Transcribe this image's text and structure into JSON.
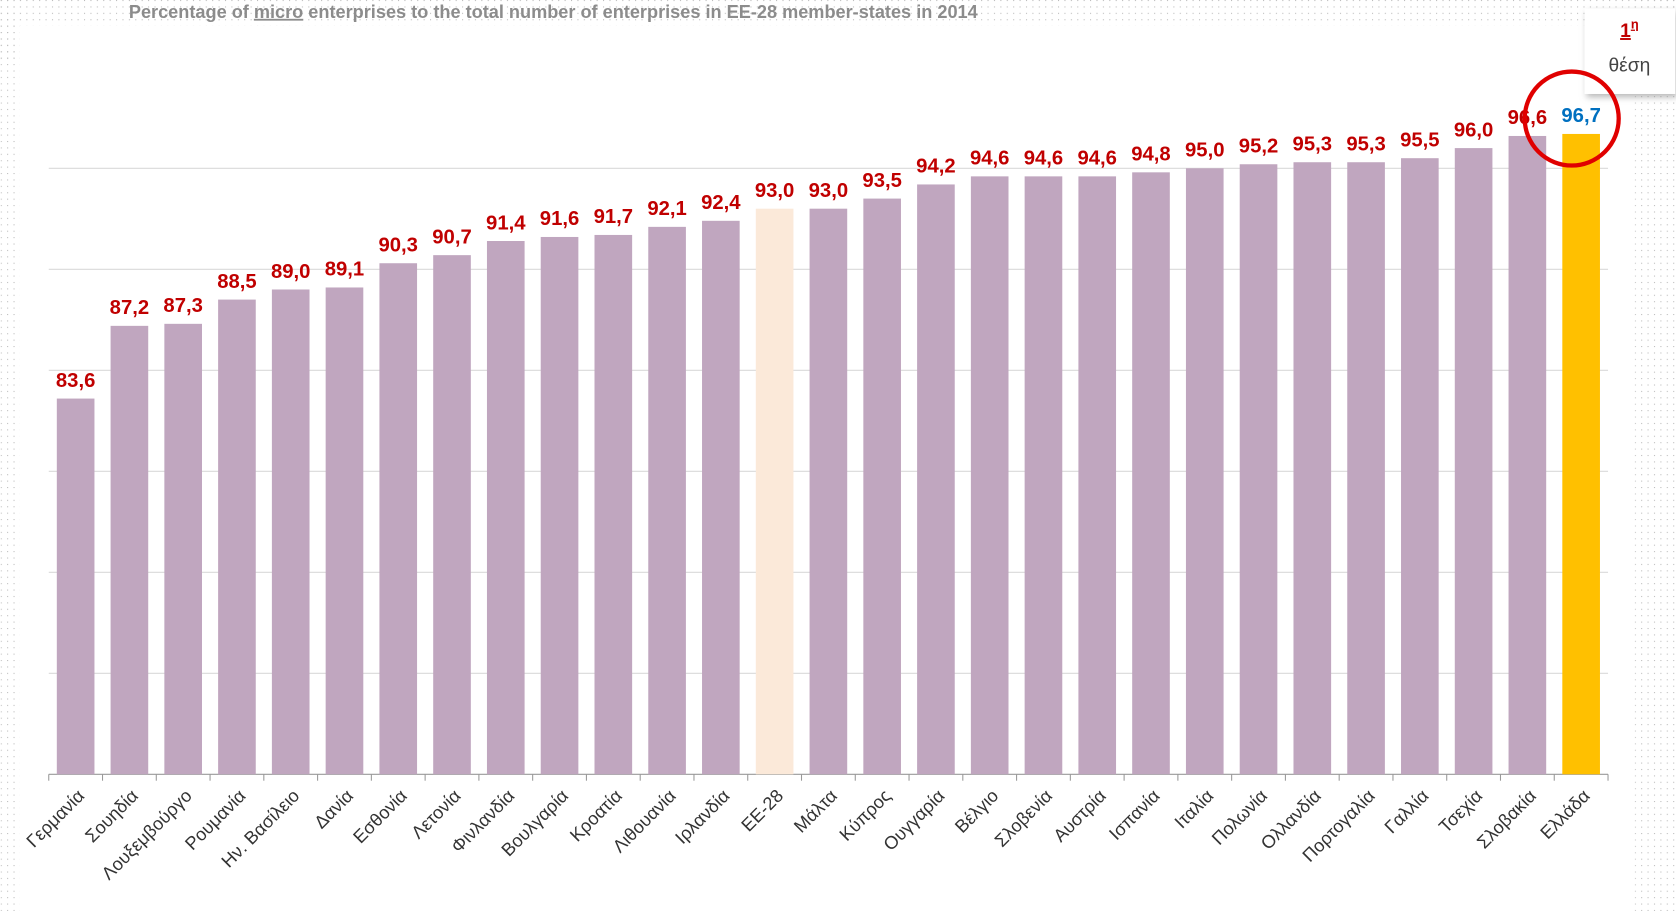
{
  "chart_data": {
    "type": "bar",
    "title": [
      "Percentage of ",
      "micro",
      " enterprises to the total number of enterprises in EE-28 member-states in 2014"
    ],
    "categories": [
      "Γερμανία",
      "Σουηδία",
      "Λουξεμβούργο",
      "Ρουμανία",
      "Ην. Βασίλειο",
      "Δανία",
      "Εσθονία",
      "Λετονία",
      "Φινλανδία",
      "Βουλγαρία",
      "Κροατία",
      "Λιθουανία",
      "Ιρλανδία",
      "ΕΕ-28",
      "Μάλτα",
      "Κύπρος",
      "Ουγγαρία",
      "Βέλγιο",
      "Σλοβενία",
      "Αυστρία",
      "Ισπανία",
      "Ιταλία",
      "Πολωνία",
      "Ολλανδία",
      "Πορτογαλία",
      "Γαλλία",
      "Τσεχία",
      "Σλοβακία",
      "Ελλάδα"
    ],
    "values": [
      83.6,
      87.2,
      87.3,
      88.5,
      89.0,
      89.1,
      90.3,
      90.7,
      91.4,
      91.6,
      91.7,
      92.1,
      92.4,
      93.0,
      93.0,
      93.5,
      94.2,
      94.6,
      94.6,
      94.6,
      94.8,
      95.0,
      95.2,
      95.3,
      95.3,
      95.5,
      96.0,
      96.6,
      96.7
    ],
    "value_labels": [
      "83,6",
      "87,2",
      "87,3",
      "88,5",
      "89,0",
      "89,1",
      "90,3",
      "90,7",
      "91,4",
      "91,6",
      "91,7",
      "92,1",
      "92,4",
      "93,0",
      "93,0",
      "93,5",
      "94,2",
      "94,6",
      "94,6",
      "94,6",
      "94,8",
      "95,0",
      "95,2",
      "95,3",
      "95,3",
      "95,5",
      "96,0",
      "96,6",
      "96,7"
    ],
    "colors": [
      "#c0a6bf",
      "#c0a6bf",
      "#c0a6bf",
      "#c0a6bf",
      "#c0a6bf",
      "#c0a6bf",
      "#c0a6bf",
      "#c0a6bf",
      "#c0a6bf",
      "#c0a6bf",
      "#c0a6bf",
      "#c0a6bf",
      "#c0a6bf",
      "#fbe9d9",
      "#c0a6bf",
      "#c0a6bf",
      "#c0a6bf",
      "#c0a6bf",
      "#c0a6bf",
      "#c0a6bf",
      "#c0a6bf",
      "#c0a6bf",
      "#c0a6bf",
      "#c0a6bf",
      "#c0a6bf",
      "#c0a6bf",
      "#c0a6bf",
      "#c0a6bf",
      "#ffc000"
    ],
    "label_colors": [
      "#c00000",
      "#c00000",
      "#c00000",
      "#c00000",
      "#c00000",
      "#c00000",
      "#c00000",
      "#c00000",
      "#c00000",
      "#c00000",
      "#c00000",
      "#c00000",
      "#c00000",
      "#c00000",
      "#c00000",
      "#c00000",
      "#c00000",
      "#c00000",
      "#c00000",
      "#c00000",
      "#c00000",
      "#c00000",
      "#c00000",
      "#c00000",
      "#c00000",
      "#c00000",
      "#c00000",
      "#c00000",
      "#0070c0"
    ],
    "ylim": [
      65,
      100
    ],
    "yticks": [
      65,
      70,
      75,
      80,
      85,
      90,
      95
    ],
    "grid": true,
    "annotation": {
      "rank": "1",
      "suffix": "η",
      "text": "θέση"
    }
  }
}
